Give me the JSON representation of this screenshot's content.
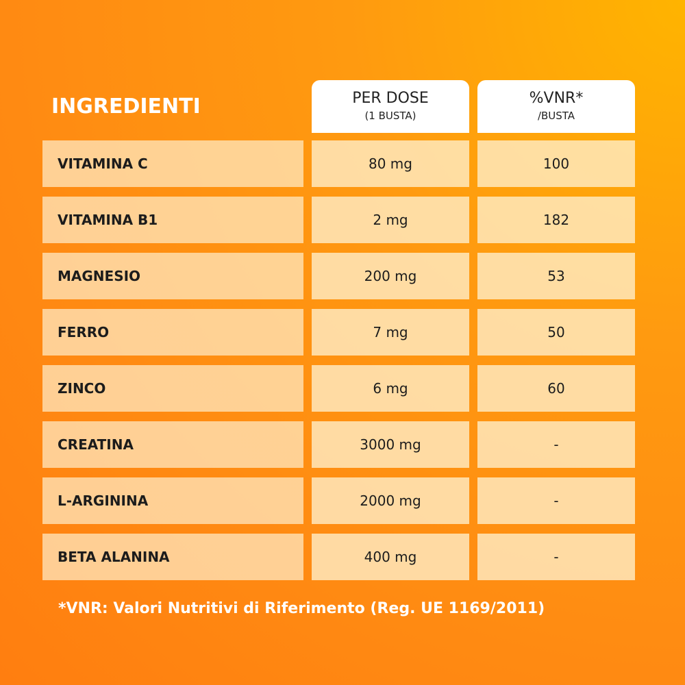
{
  "header": {
    "title": "INGREDIENTI",
    "columns": [
      {
        "title": "PER DOSE",
        "subtitle": "(1 BUSTA)"
      },
      {
        "title": "%VNR*",
        "subtitle": "/BUSTA"
      }
    ]
  },
  "table": {
    "rows": [
      [
        "VITAMINA C",
        "80 mg",
        "100"
      ],
      [
        "VITAMINA B1",
        "2 mg",
        "182"
      ],
      [
        "MAGNESIO",
        "200 mg",
        "53"
      ],
      [
        "FERRO",
        "7 mg",
        "50"
      ],
      [
        "ZINCO",
        "6 mg",
        "60"
      ],
      [
        "CREATINA",
        "3000 mg",
        "-"
      ],
      [
        "L-ARGININA",
        "2000 mg",
        "-"
      ],
      [
        "BETA ALANINA",
        "400 mg",
        "-"
      ]
    ]
  },
  "footnote": "*VNR: Valori Nutritivi di Riferimento (Reg. UE 1169/2011)"
}
